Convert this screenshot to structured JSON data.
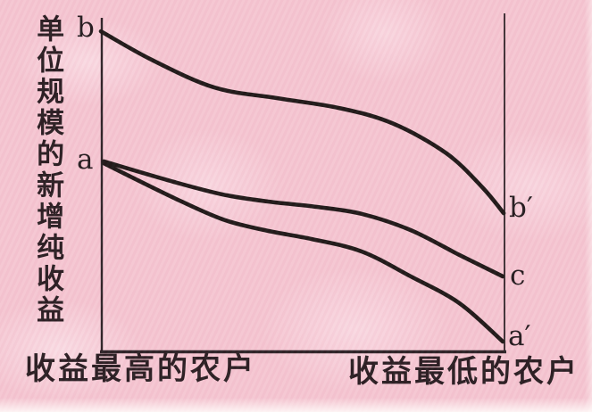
{
  "colors": {
    "background": "#f4c4d0",
    "axis": "#241a1e",
    "curve": "#16100f",
    "text": "#1a1215"
  },
  "chart_data": {
    "type": "line",
    "title": "",
    "ylabel": "单位规模的新增纯收益",
    "xlabel_left": "收益最高的农户",
    "xlabel_right": "收益最低的农户",
    "axes": {
      "x_range": [
        0,
        1
      ],
      "y_range": [
        0,
        1
      ],
      "grid": false,
      "frame_sides": [
        "left",
        "bottom",
        "right"
      ],
      "tick_labels": "none"
    },
    "point_labels": {
      "b": "b",
      "a": "a",
      "b_prime": "b′",
      "c": "c",
      "a_prime": "a′"
    },
    "series": [
      {
        "name": "curve-b-to-b-prime",
        "start_label": "b",
        "end_label": "b′",
        "points": [
          [
            0.0,
            0.965
          ],
          [
            0.126,
            0.879
          ],
          [
            0.281,
            0.796
          ],
          [
            0.436,
            0.764
          ],
          [
            0.591,
            0.734
          ],
          [
            0.723,
            0.688
          ],
          [
            0.856,
            0.598
          ],
          [
            0.945,
            0.496
          ],
          [
            0.998,
            0.418
          ]
        ]
      },
      {
        "name": "curve-a-to-c",
        "start_label": "a",
        "end_label": "c",
        "points": [
          [
            0.007,
            0.574
          ],
          [
            0.181,
            0.512
          ],
          [
            0.303,
            0.474
          ],
          [
            0.414,
            0.453
          ],
          [
            0.535,
            0.437
          ],
          [
            0.646,
            0.416
          ],
          [
            0.768,
            0.367
          ],
          [
            0.889,
            0.292
          ],
          [
            0.996,
            0.228
          ]
        ]
      },
      {
        "name": "curve-a-to-a-prime",
        "start_label": "a",
        "end_label": "a′",
        "points": [
          [
            0.007,
            0.568
          ],
          [
            0.181,
            0.464
          ],
          [
            0.303,
            0.399
          ],
          [
            0.414,
            0.365
          ],
          [
            0.524,
            0.34
          ],
          [
            0.646,
            0.303
          ],
          [
            0.768,
            0.228
          ],
          [
            0.889,
            0.147
          ],
          [
            0.996,
            0.032
          ]
        ]
      }
    ]
  }
}
